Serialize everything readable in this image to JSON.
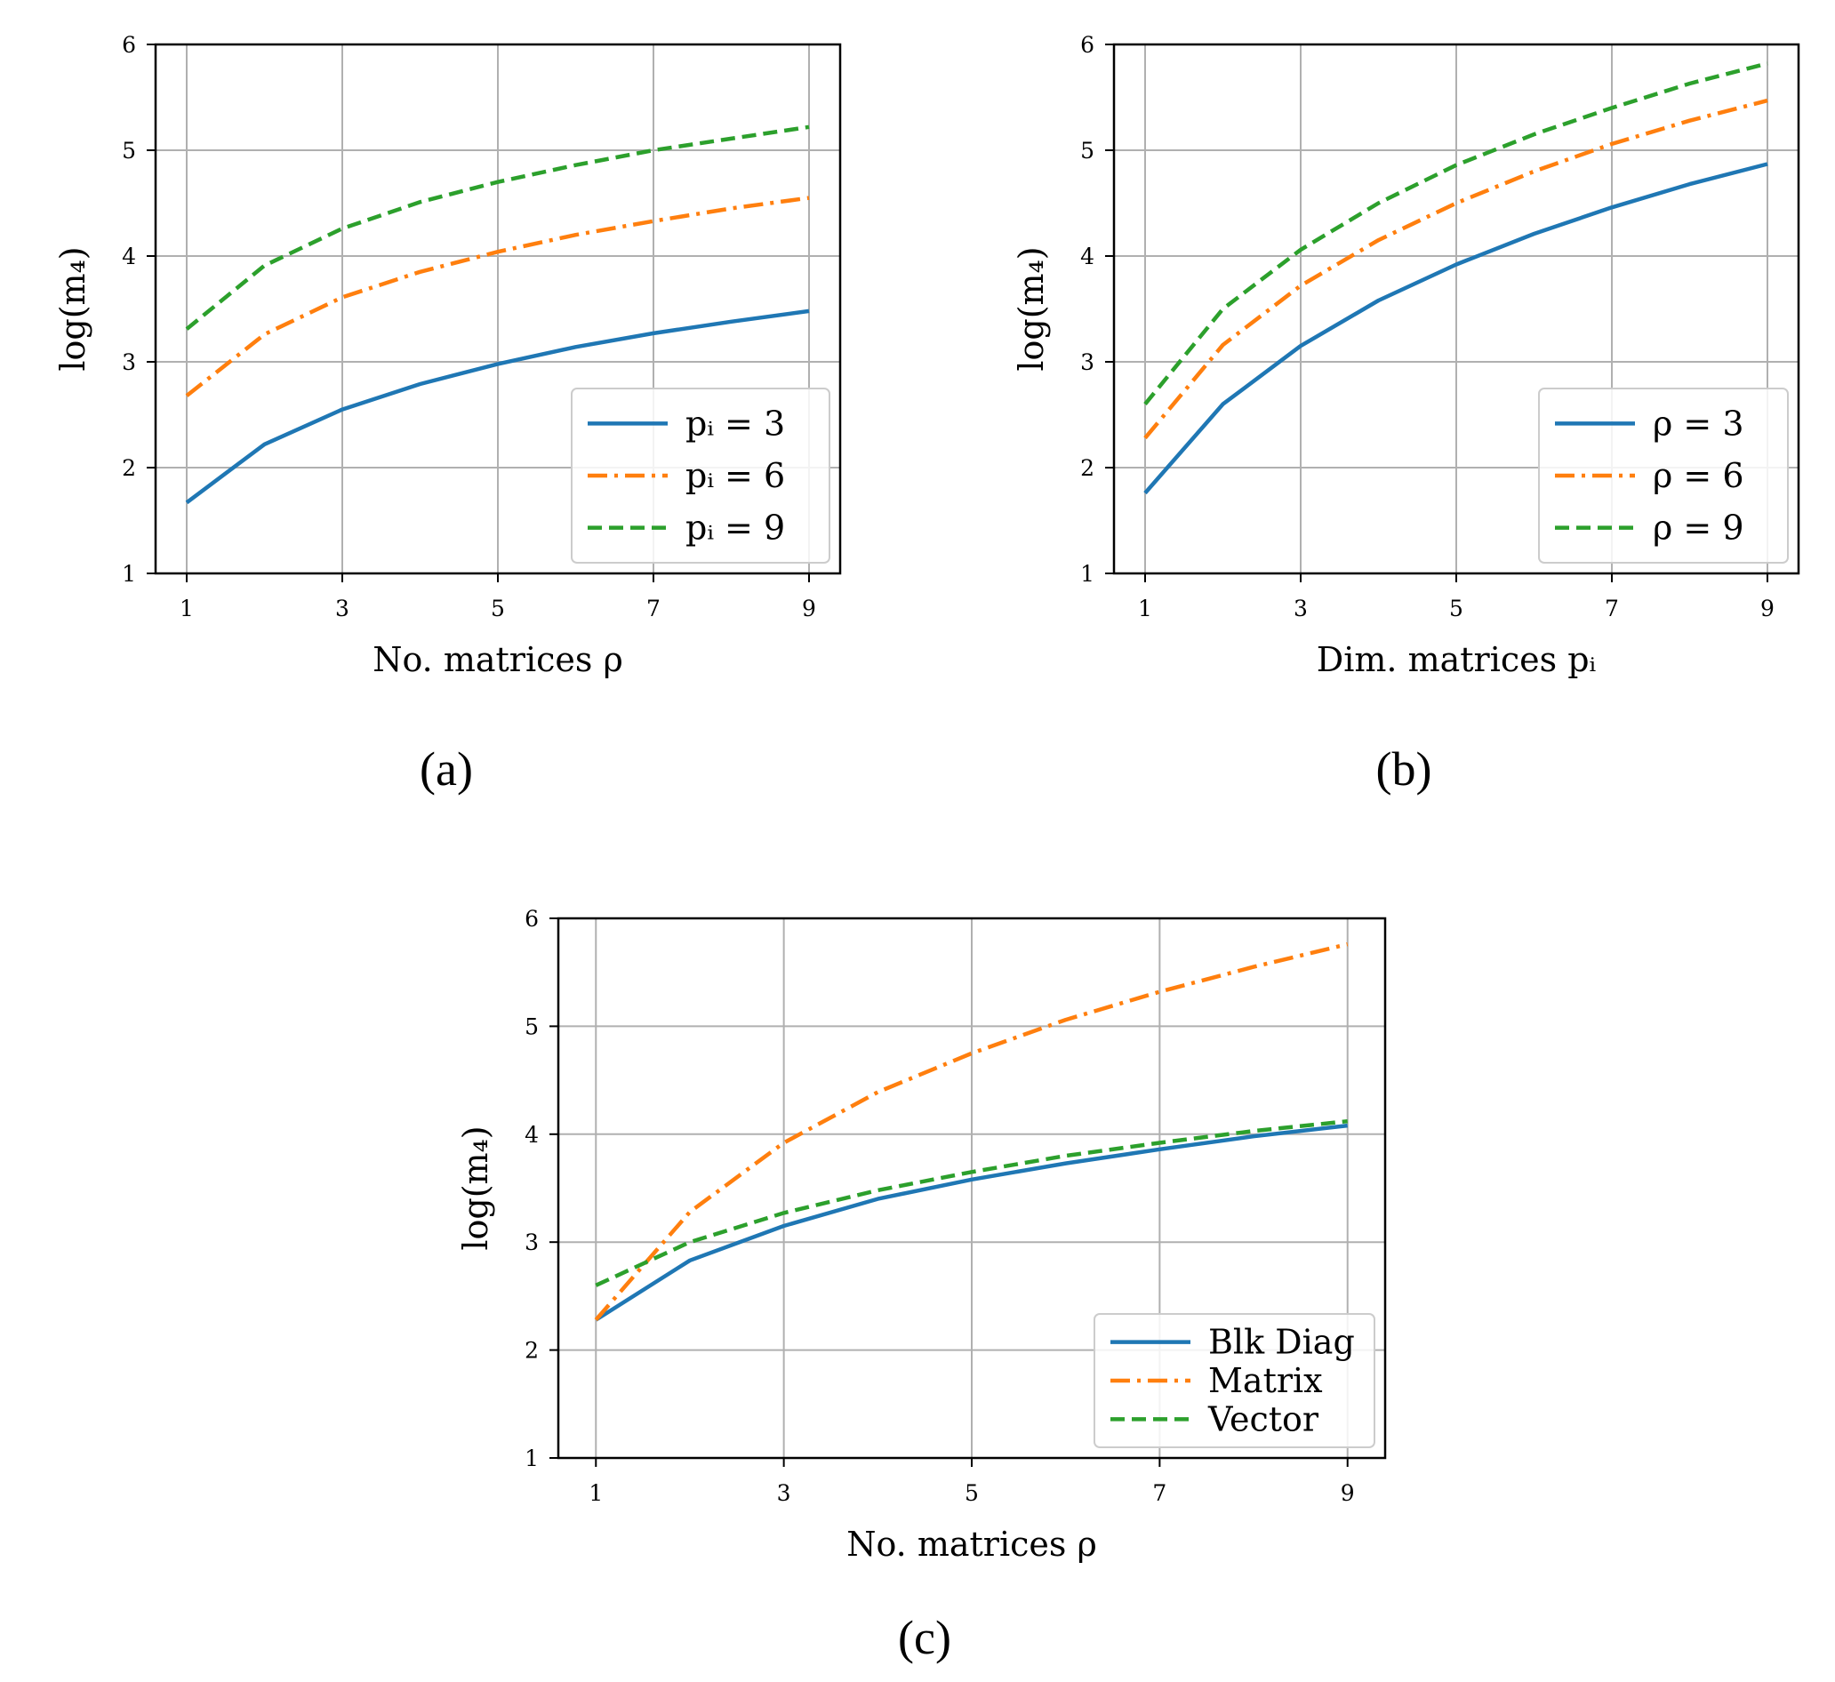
{
  "colors": {
    "blue": "#1f77b4",
    "orange": "#ff7f0e",
    "green": "#2ca02c",
    "grid": "#b0b0b0",
    "legend_border": "#cccccc"
  },
  "chart_data": [
    {
      "id": "a",
      "type": "line",
      "caption": "(a)",
      "xlabel": "No. matrices ρ",
      "ylabel": "log(m₄)",
      "xlim": [
        0.6,
        9.4
      ],
      "ylim": [
        1,
        6
      ],
      "xticks": [
        "1",
        "3",
        "5",
        "7",
        "9"
      ],
      "yticks": [
        "1",
        "2",
        "3",
        "4",
        "5",
        "6"
      ],
      "grid": true,
      "legend_position": "lower-right",
      "x": [
        1,
        2,
        3,
        4,
        5,
        6,
        7,
        8,
        9
      ],
      "series": [
        {
          "name": "pᵢ = 3",
          "color": "blue",
          "dash": "solid",
          "values": [
            1.67,
            2.22,
            2.55,
            2.79,
            2.98,
            3.14,
            3.27,
            3.38,
            3.48
          ]
        },
        {
          "name": "pᵢ = 6",
          "color": "orange",
          "dash": "dashdot",
          "values": [
            2.68,
            3.26,
            3.61,
            3.85,
            4.04,
            4.2,
            4.33,
            4.45,
            4.55
          ]
        },
        {
          "name": "pᵢ = 9",
          "color": "green",
          "dash": "dashed",
          "values": [
            3.31,
            3.91,
            4.26,
            4.51,
            4.7,
            4.86,
            5.0,
            5.11,
            5.22
          ]
        }
      ]
    },
    {
      "id": "b",
      "type": "line",
      "caption": "(b)",
      "xlabel": "Dim. matrices pᵢ",
      "ylabel": "log(m₄)",
      "xlim": [
        0.6,
        9.4
      ],
      "ylim": [
        1,
        6
      ],
      "xticks": [
        "1",
        "3",
        "5",
        "7",
        "9"
      ],
      "yticks": [
        "1",
        "2",
        "3",
        "4",
        "5",
        "6"
      ],
      "grid": true,
      "legend_position": "lower-right",
      "x": [
        1,
        2,
        3,
        4,
        5,
        6,
        7,
        8,
        9
      ],
      "series": [
        {
          "name": "ρ = 3",
          "color": "blue",
          "dash": "solid",
          "values": [
            1.76,
            2.6,
            3.15,
            3.58,
            3.92,
            4.21,
            4.46,
            4.68,
            4.87
          ]
        },
        {
          "name": "ρ = 6",
          "color": "orange",
          "dash": "dashdot",
          "values": [
            2.28,
            3.16,
            3.72,
            4.15,
            4.5,
            4.8,
            5.06,
            5.28,
            5.47
          ]
        },
        {
          "name": "ρ = 9",
          "color": "green",
          "dash": "dashed",
          "values": [
            2.6,
            3.5,
            4.06,
            4.5,
            4.86,
            5.15,
            5.4,
            5.63,
            5.82
          ]
        }
      ]
    },
    {
      "id": "c",
      "type": "line",
      "caption": "(c)",
      "xlabel": "No. matrices ρ",
      "ylabel": "log(m₄)",
      "xlim": [
        0.6,
        9.4
      ],
      "ylim": [
        1,
        6
      ],
      "xticks": [
        "1",
        "3",
        "5",
        "7",
        "9"
      ],
      "yticks": [
        "1",
        "2",
        "3",
        "4",
        "5",
        "6"
      ],
      "grid": true,
      "legend_position": "lower-right",
      "x": [
        1,
        2,
        3,
        4,
        5,
        6,
        7,
        8,
        9
      ],
      "series": [
        {
          "name": "Blk Diag",
          "color": "blue",
          "dash": "solid",
          "values": [
            2.28,
            2.83,
            3.15,
            3.4,
            3.58,
            3.73,
            3.86,
            3.98,
            4.08
          ]
        },
        {
          "name": "Matrix",
          "color": "orange",
          "dash": "dashdot",
          "values": [
            2.28,
            3.28,
            3.92,
            4.39,
            4.75,
            5.06,
            5.32,
            5.55,
            5.76
          ]
        },
        {
          "name": "Vector",
          "color": "green",
          "dash": "dashed",
          "values": [
            2.6,
            3.0,
            3.27,
            3.48,
            3.65,
            3.8,
            3.92,
            4.03,
            4.12
          ]
        }
      ]
    }
  ]
}
